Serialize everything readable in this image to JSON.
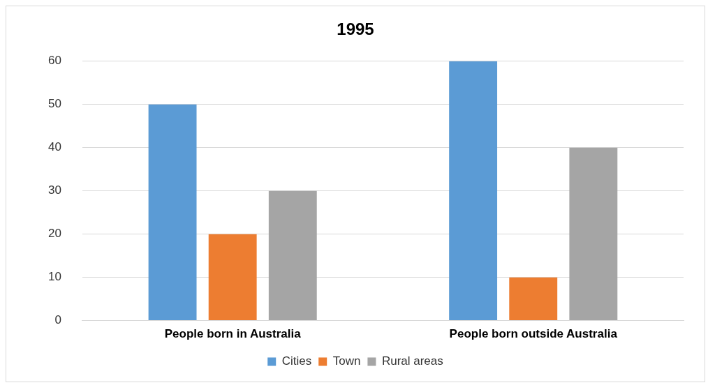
{
  "chart_data": {
    "type": "bar",
    "title": "1995",
    "categories": [
      "People born in Australia",
      "People born outside Australia"
    ],
    "series": [
      {
        "name": "Cities",
        "color": "#5b9bd5",
        "values": [
          50,
          60
        ]
      },
      {
        "name": "Town",
        "color": "#ed7d31",
        "values": [
          20,
          10
        ]
      },
      {
        "name": "Rural areas",
        "color": "#a5a5a5",
        "values": [
          30,
          40
        ]
      }
    ],
    "ylim": [
      0,
      60
    ],
    "yticks": [
      0,
      10,
      20,
      30,
      40,
      50,
      60
    ],
    "grid": "y",
    "legend": "bottom"
  }
}
